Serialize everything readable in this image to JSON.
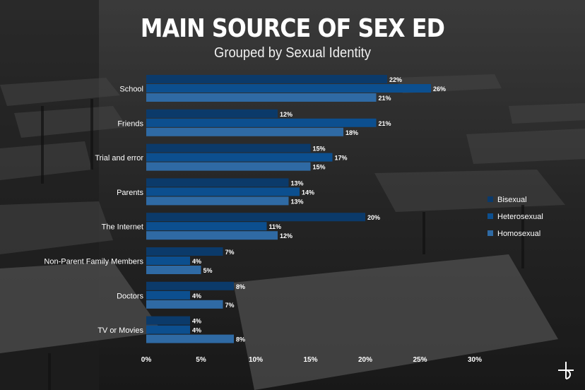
{
  "title": "MAIN SOURCE OF SEX ED",
  "subtitle": "Grouped by Sexual Identity",
  "colors": {
    "bisexual": "#0b3a6a",
    "heterosexual": "#0c4f8f",
    "homosexual": "#2f6aa4",
    "text": "#ffffff"
  },
  "logo_icon": "b-logo-icon",
  "chart_data": {
    "type": "bar",
    "orientation": "horizontal",
    "categories": [
      "School",
      "Friends",
      "Trial and error",
      "Parents",
      "The Internet",
      "Non-Parent Family Members",
      "Doctors",
      "TV or Movies"
    ],
    "series": [
      {
        "name": "Bisexual",
        "values": [
          22,
          12,
          15,
          13,
          20,
          7,
          8,
          4
        ]
      },
      {
        "name": "Heterosexual",
        "values": [
          26,
          21,
          17,
          14,
          11,
          4,
          4,
          4
        ]
      },
      {
        "name": "Homosexual",
        "values": [
          21,
          18,
          15,
          13,
          12,
          5,
          7,
          8
        ]
      }
    ],
    "data_labels": [
      [
        "22%",
        "12%",
        "15%",
        "13%",
        "20%",
        "7%",
        "8%",
        "4%"
      ],
      [
        "26%",
        "21%",
        "17%",
        "14%",
        "11%",
        "4%",
        "4%",
        "4%"
      ],
      [
        "21%",
        "18%",
        "15%",
        "13%",
        "12%",
        "5%",
        "7%",
        "8%"
      ]
    ],
    "xlim": [
      0,
      30
    ],
    "xticks": [
      0,
      5,
      10,
      15,
      20,
      25,
      30
    ],
    "xtick_labels": [
      "0%",
      "5%",
      "10%",
      "15%",
      "20%",
      "25%",
      "30%"
    ],
    "legend_position": "right",
    "grid": false
  }
}
